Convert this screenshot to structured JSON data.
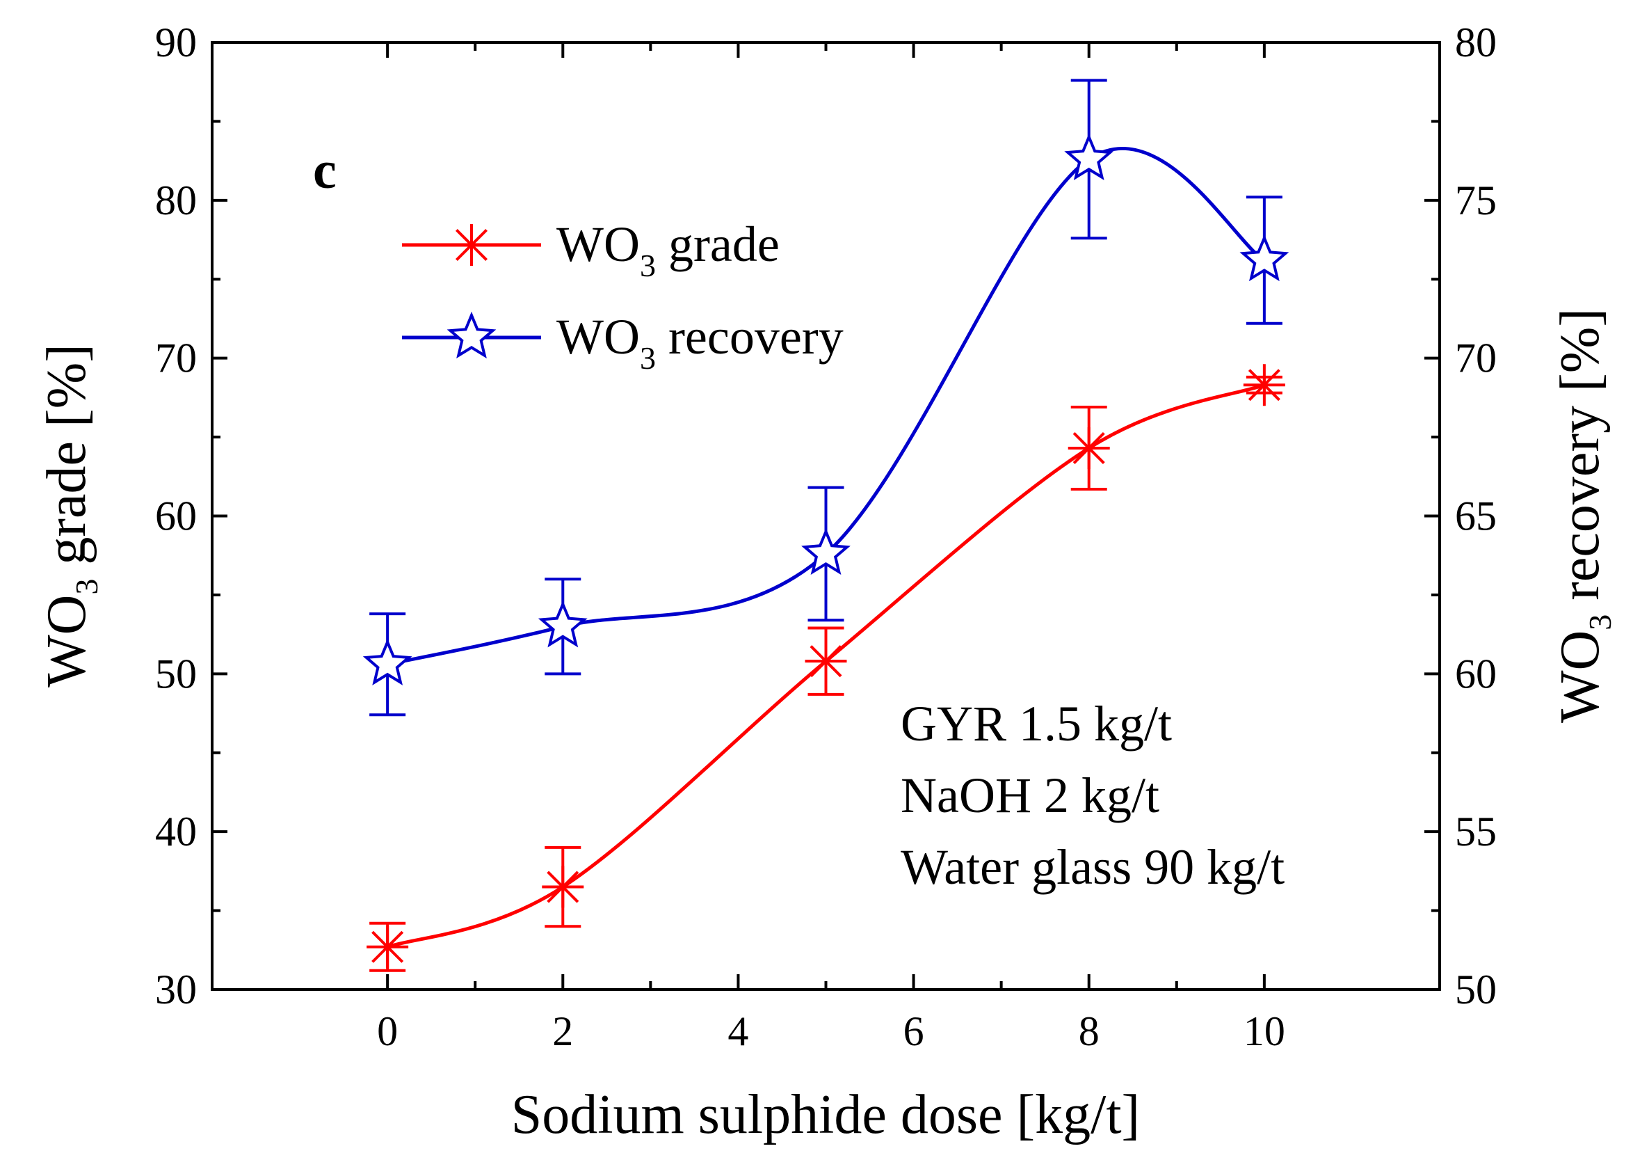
{
  "chart_data": {
    "type": "line",
    "panel_label": "c",
    "x": [
      0,
      2,
      5,
      8,
      10
    ],
    "xlim": [
      -2,
      12
    ],
    "xticks": [
      0,
      2,
      4,
      6,
      8,
      10
    ],
    "xlabel": "Sodium sulphide dose [kg/t]",
    "ylabel_left": {
      "main": "WO",
      "sub": "3",
      "rest": " grade [%]"
    },
    "ylabel_right": {
      "main": "WO",
      "sub": "3",
      "rest": " recovery [%]"
    },
    "ylim_left": [
      30,
      90
    ],
    "yticks_left": [
      30,
      40,
      50,
      60,
      70,
      80,
      90
    ],
    "ylim_right": [
      50,
      80
    ],
    "yticks_right": [
      50,
      55,
      60,
      65,
      70,
      75,
      80
    ],
    "series": [
      {
        "name": "WO3 grade",
        "legend": {
          "main": "WO",
          "sub": "3",
          "rest": " grade"
        },
        "axis": "left",
        "marker": "asterisk",
        "color": "#ff0000",
        "values": [
          32.7,
          36.5,
          50.8,
          64.3,
          68.3
        ],
        "errors": [
          1.5,
          2.5,
          2.1,
          2.6,
          0.5
        ]
      },
      {
        "name": "WO3 recovery",
        "legend": {
          "main": "WO",
          "sub": "3",
          "rest": " recovery"
        },
        "axis": "right",
        "marker": "star",
        "color": "#0000cc",
        "values": [
          60.3,
          61.5,
          63.8,
          76.3,
          73.1
        ],
        "errors": [
          1.6,
          1.5,
          2.1,
          2.5,
          2.0
        ]
      }
    ],
    "annotations": [
      "GYR 1.5 kg/t",
      "NaOH 2 kg/t",
      "Water glass 90 kg/t"
    ]
  }
}
